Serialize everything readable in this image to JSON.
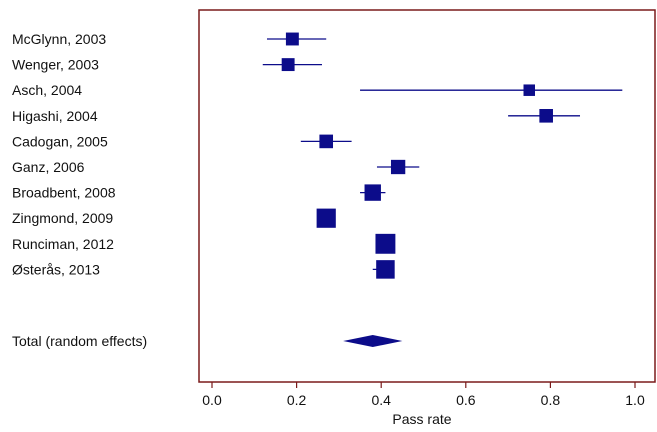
{
  "chart_data": {
    "type": "forest",
    "xlabel": "Pass rate",
    "xlim": [
      0.0,
      1.0
    ],
    "xticks": [
      "0.0",
      "0.2",
      "0.4",
      "0.6",
      "0.8",
      "1.0"
    ],
    "xtick_values": [
      0.0,
      0.2,
      0.4,
      0.6,
      0.8,
      1.0
    ],
    "studies": [
      {
        "label": "McGlynn, 2003",
        "estimate": 0.19,
        "ci": [
          0.13,
          0.27
        ],
        "weight": 0.35
      },
      {
        "label": "Wenger, 2003",
        "estimate": 0.18,
        "ci": [
          0.12,
          0.26
        ],
        "weight": 0.35
      },
      {
        "label": "Asch, 2004",
        "estimate": 0.75,
        "ci": [
          0.35,
          0.97
        ],
        "weight": 0.25
      },
      {
        "label": "Higashi, 2004",
        "estimate": 0.79,
        "ci": [
          0.7,
          0.87
        ],
        "weight": 0.4
      },
      {
        "label": "Cadogan, 2005",
        "estimate": 0.27,
        "ci": [
          0.21,
          0.33
        ],
        "weight": 0.4
      },
      {
        "label": "Ganz, 2006",
        "estimate": 0.44,
        "ci": [
          0.39,
          0.49
        ],
        "weight": 0.45
      },
      {
        "label": "Broadbent, 2008",
        "estimate": 0.38,
        "ci": [
          0.35,
          0.41
        ],
        "weight": 0.6
      },
      {
        "label": "Zingmond, 2009",
        "estimate": 0.27,
        "ci": [
          0.26,
          0.28
        ],
        "weight": 0.8
      },
      {
        "label": "Runciman, 2012",
        "estimate": 0.41,
        "ci": [
          0.4,
          0.42
        ],
        "weight": 0.85
      },
      {
        "label": "Østerås, 2013",
        "estimate": 0.41,
        "ci": [
          0.38,
          0.43
        ],
        "weight": 0.75
      }
    ],
    "total": {
      "label": "Total (random effects)",
      "estimate": 0.38,
      "ci": [
        0.31,
        0.45
      ]
    },
    "colors": {
      "marker": "#0c0c8a",
      "frame": "#7a1a1a",
      "text": "#111111"
    }
  }
}
